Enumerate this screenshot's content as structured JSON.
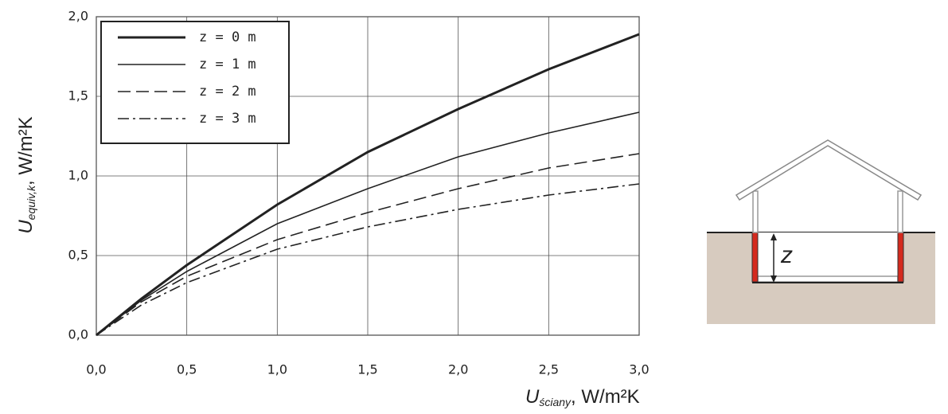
{
  "chart_data": {
    "type": "line",
    "x_label": {
      "symbol": "U",
      "subscript": "ściany",
      "unit": ", W/m²K"
    },
    "y_label": {
      "symbol": "U",
      "subscript": "equiv,k",
      "unit": ", W/m²K"
    },
    "x": [
      0,
      0.25,
      0.5,
      1.0,
      1.5,
      2.0,
      2.5,
      3.0
    ],
    "series": [
      {
        "name": "z = 0 m",
        "color": "#222222",
        "width": 3,
        "dash": "solid",
        "values": [
          0,
          0.23,
          0.44,
          0.82,
          1.15,
          1.42,
          1.67,
          1.89
        ]
      },
      {
        "name": "z = 1 m",
        "color": "#222222",
        "width": 1.6,
        "dash": "solid",
        "values": [
          0,
          0.22,
          0.4,
          0.7,
          0.92,
          1.12,
          1.27,
          1.4
        ]
      },
      {
        "name": "z = 2 m",
        "color": "#222222",
        "width": 1.6,
        "dash": "dashed",
        "values": [
          0,
          0.21,
          0.37,
          0.6,
          0.77,
          0.92,
          1.05,
          1.14
        ]
      },
      {
        "name": "z = 3 m",
        "color": "#222222",
        "width": 1.6,
        "dash": "dashdot",
        "values": [
          0,
          0.19,
          0.33,
          0.54,
          0.68,
          0.79,
          0.88,
          0.95
        ]
      }
    ],
    "xlim": [
      0,
      3.0
    ],
    "ylim": [
      0,
      2.0
    ],
    "xticks": [
      {
        "value": 0,
        "label": "0,0"
      },
      {
        "value": 0.5,
        "label": "0,5"
      },
      {
        "value": 1.0,
        "label": "1,0"
      },
      {
        "value": 1.5,
        "label": "1,5"
      },
      {
        "value": 2.0,
        "label": "2,0"
      },
      {
        "value": 2.5,
        "label": "2,5"
      },
      {
        "value": 3.0,
        "label": "3,0"
      }
    ],
    "yticks": [
      {
        "value": 0,
        "label": "0,0"
      },
      {
        "value": 0.5,
        "label": "0,5"
      },
      {
        "value": 1.0,
        "label": "1,0"
      },
      {
        "value": 1.5,
        "label": "1,5"
      },
      {
        "value": 2.0,
        "label": "2,0"
      }
    ],
    "grid": true,
    "legend": "upper left"
  },
  "diagram": {
    "label": "z"
  }
}
